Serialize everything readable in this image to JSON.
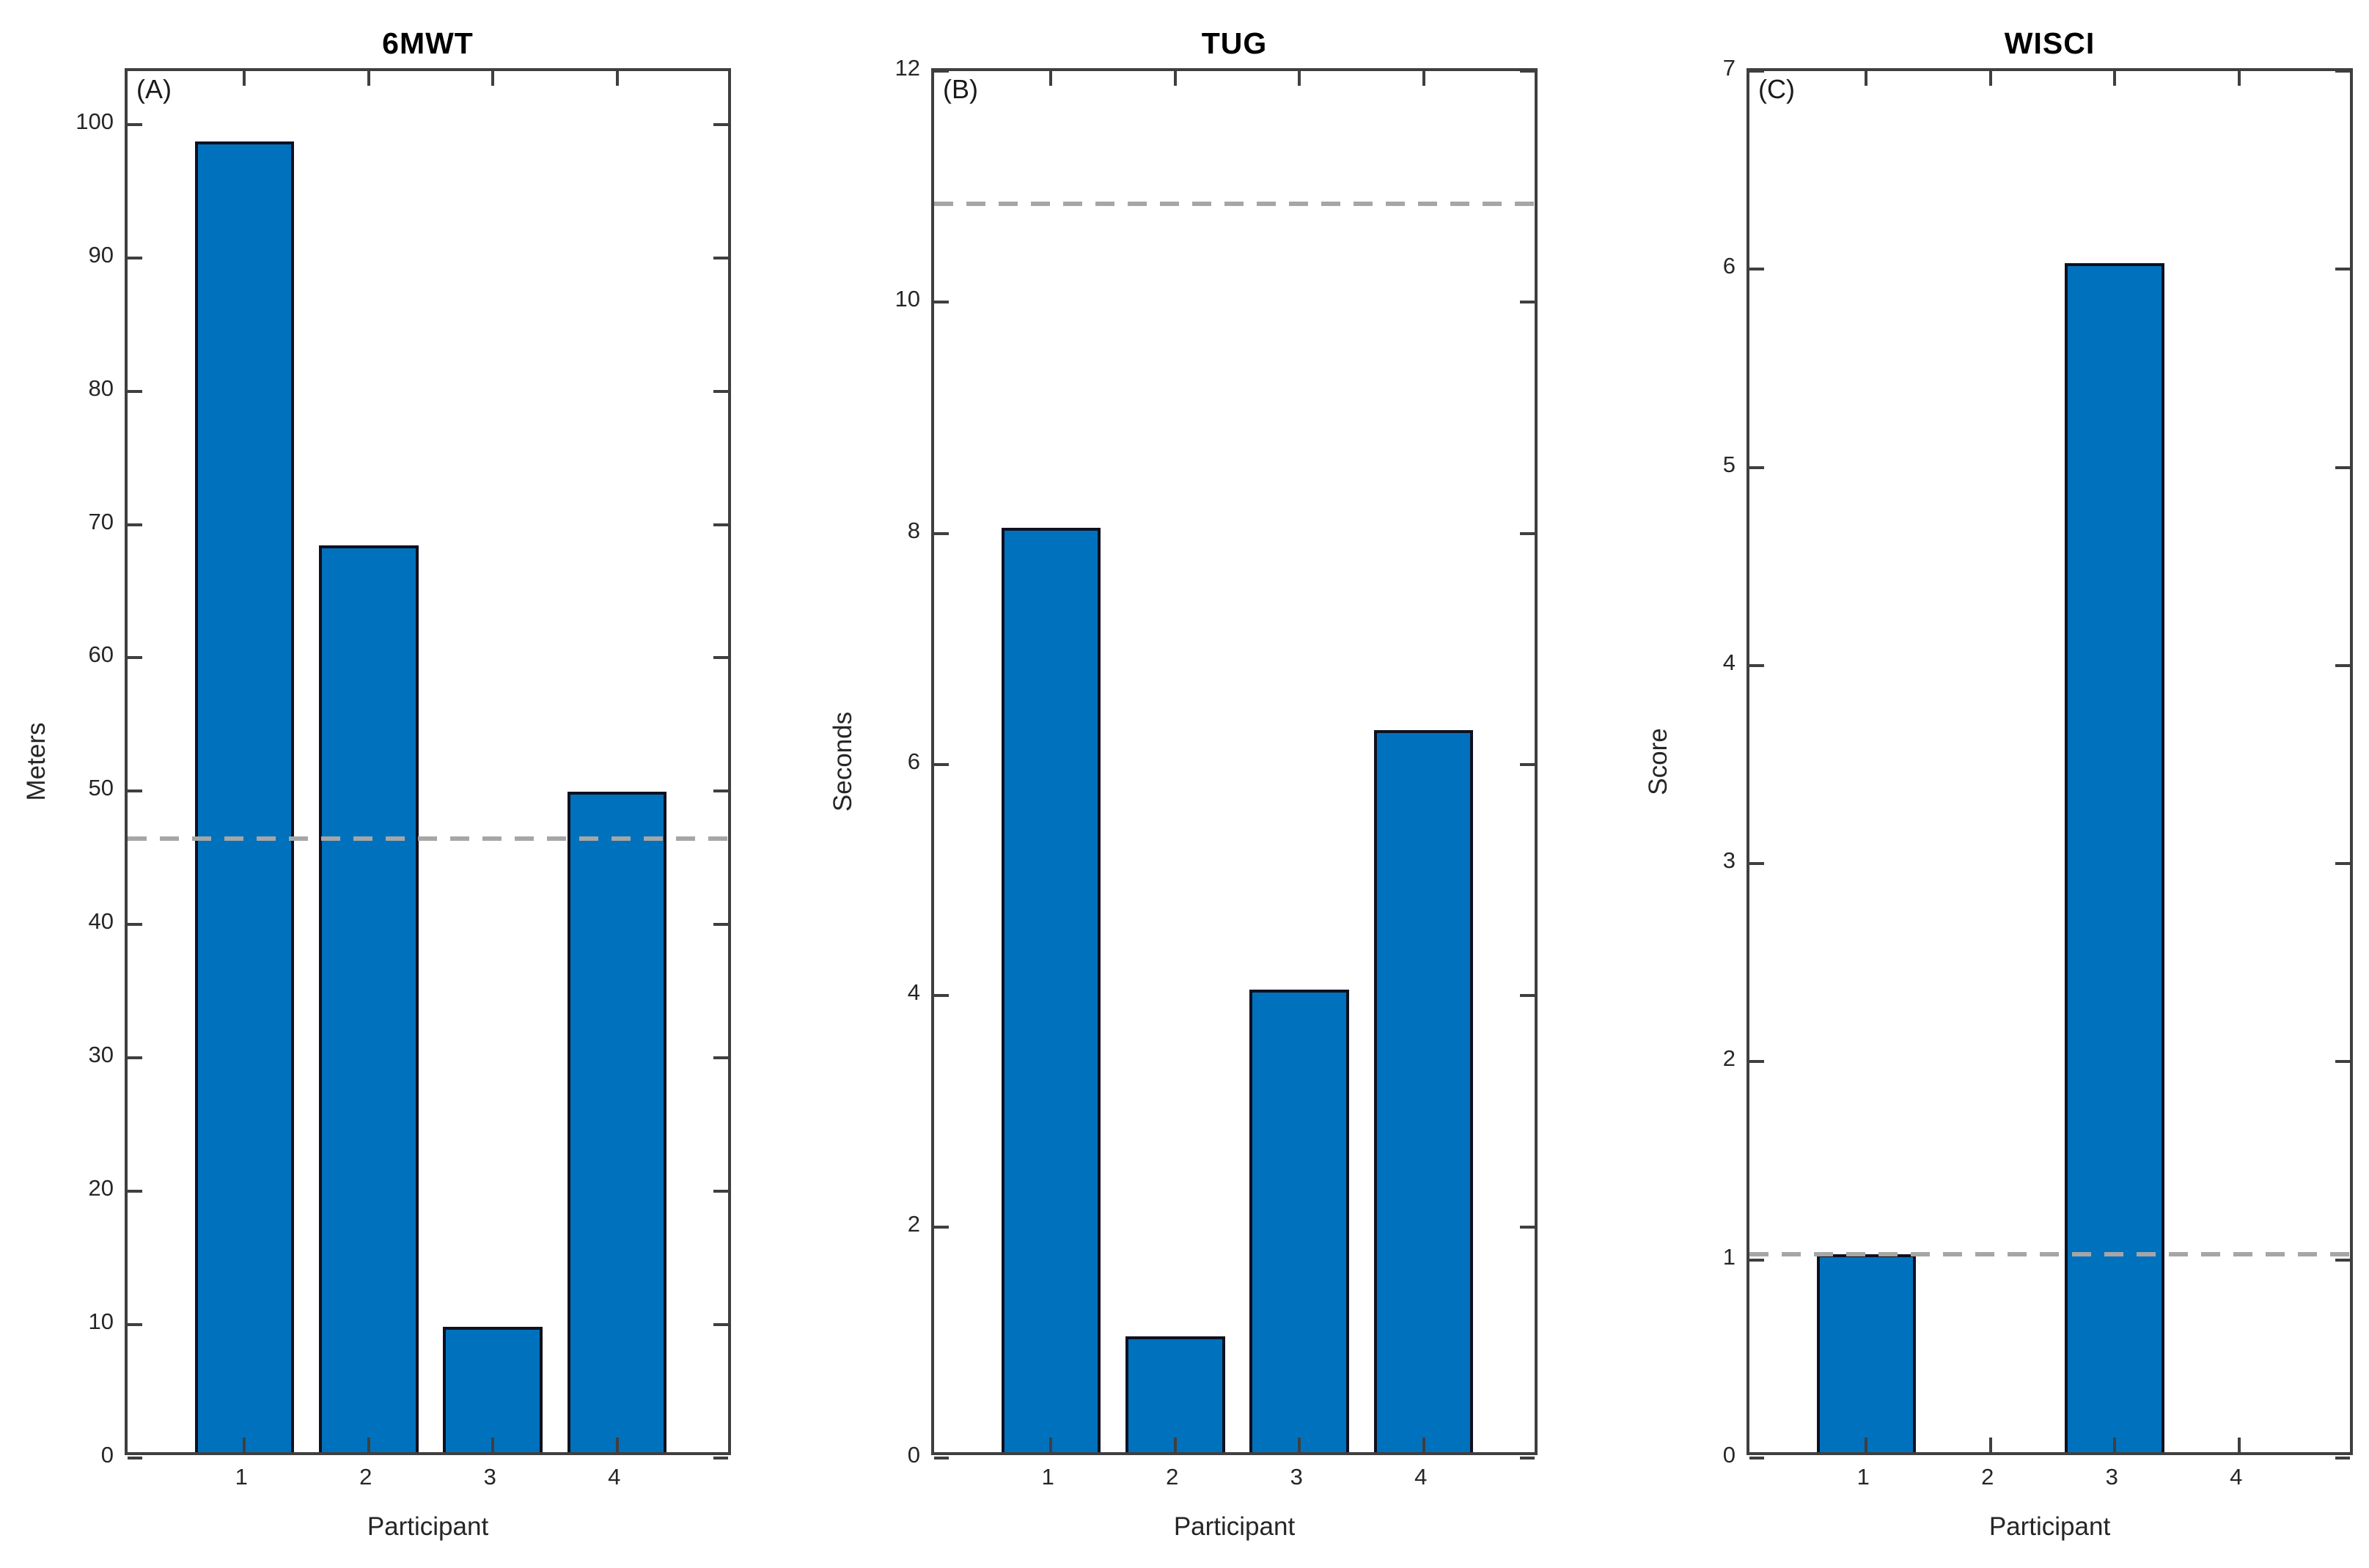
{
  "figure": {
    "background": "#ffffff",
    "bar_fill_color": "#0072BD",
    "bar_edge_color": "#101020",
    "axis_color": "#3f3f3f",
    "ref_line_color": "#a6a6a6",
    "tick_text_color": "#262626",
    "title_color": "#000000"
  },
  "chart_data": [
    {
      "type": "bar",
      "panel_label": "(A)",
      "title": "6MWT",
      "xlabel": "Participant",
      "ylabel": "Meters",
      "categories": [
        "1",
        "2",
        "3",
        "4"
      ],
      "values": [
        98.3,
        68,
        9.4,
        49.5
      ],
      "ylim": [
        0,
        104
      ],
      "yticks": [
        0,
        10,
        20,
        30,
        40,
        50,
        60,
        70,
        80,
        90,
        100
      ],
      "xlim": [
        0.06,
        4.94
      ],
      "bar_width": 0.8,
      "ref_line_y": 46,
      "ref_line_style": "dashed",
      "grid": false,
      "box": true,
      "legend": "none"
    },
    {
      "type": "bar",
      "panel_label": "(B)",
      "title": "TUG",
      "xlabel": "Participant",
      "ylabel": "Seconds",
      "categories": [
        "1",
        "2",
        "3",
        "4"
      ],
      "values": [
        8,
        1,
        4,
        6.25
      ],
      "ylim": [
        0,
        12
      ],
      "yticks": [
        0,
        2,
        4,
        6,
        8,
        10,
        12
      ],
      "xlim": [
        0.06,
        4.94
      ],
      "bar_width": 0.8,
      "ref_line_y": 10.8,
      "ref_line_style": "dashed",
      "grid": false,
      "box": true,
      "legend": "none"
    },
    {
      "type": "bar",
      "panel_label": "(C)",
      "title": "WISCI",
      "xlabel": "Participant",
      "ylabel": "Score",
      "categories": [
        "1",
        "2",
        "3",
        "4"
      ],
      "values": [
        1,
        0,
        6,
        0
      ],
      "ylim": [
        0,
        7
      ],
      "yticks": [
        0,
        1,
        2,
        3,
        4,
        5,
        6,
        7
      ],
      "xlim": [
        0.06,
        4.94
      ],
      "bar_width": 0.8,
      "ref_line_y": 1,
      "ref_line_style": "dashed",
      "grid": false,
      "box": true,
      "legend": "none"
    }
  ]
}
